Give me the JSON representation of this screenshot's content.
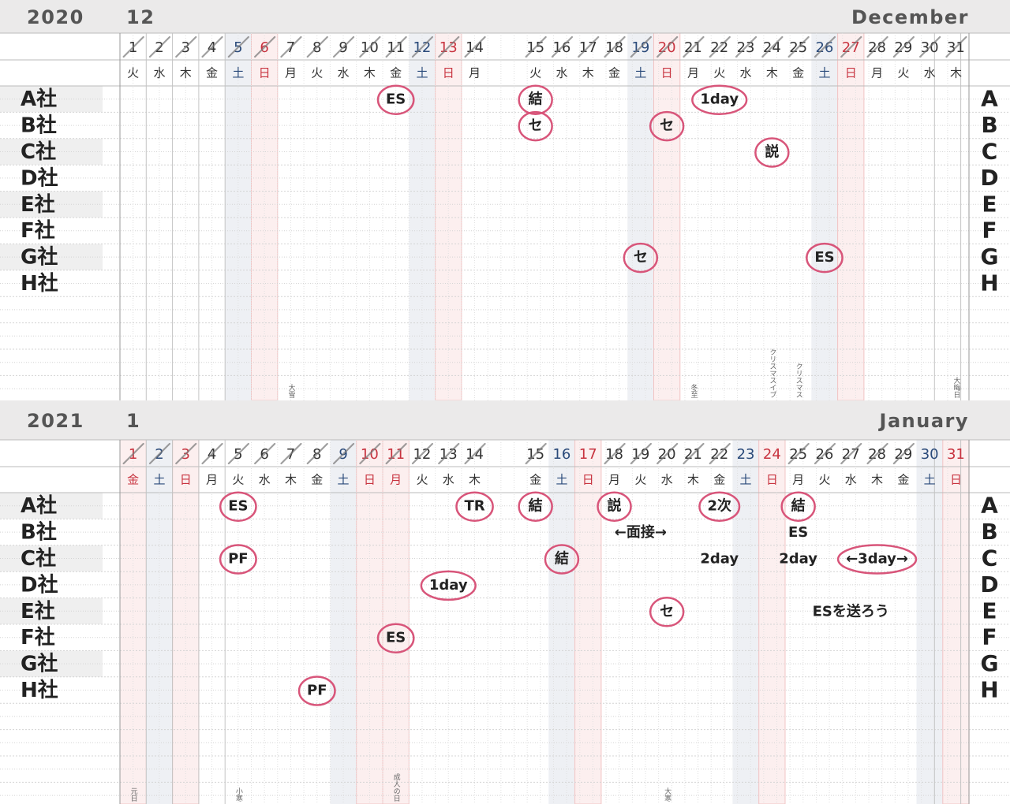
{
  "months": [
    {
      "year": "2020",
      "month": "12",
      "name": "December",
      "days": [
        {
          "d": "1",
          "w": "火"
        },
        {
          "d": "2",
          "w": "水"
        },
        {
          "d": "3",
          "w": "木"
        },
        {
          "d": "4",
          "w": "金"
        },
        {
          "d": "5",
          "w": "土"
        },
        {
          "d": "6",
          "w": "日"
        },
        {
          "d": "7",
          "w": "月",
          "note": "大雪"
        },
        {
          "d": "8",
          "w": "火"
        },
        {
          "d": "9",
          "w": "水"
        },
        {
          "d": "10",
          "w": "木"
        },
        {
          "d": "11",
          "w": "金"
        },
        {
          "d": "12",
          "w": "土"
        },
        {
          "d": "13",
          "w": "日"
        },
        {
          "d": "14",
          "w": "月"
        },
        {
          "d": "15",
          "w": "火"
        },
        {
          "d": "16",
          "w": "水"
        },
        {
          "d": "17",
          "w": "木"
        },
        {
          "d": "18",
          "w": "金"
        },
        {
          "d": "19",
          "w": "土"
        },
        {
          "d": "20",
          "w": "日"
        },
        {
          "d": "21",
          "w": "月",
          "note": "冬至"
        },
        {
          "d": "22",
          "w": "火"
        },
        {
          "d": "23",
          "w": "水"
        },
        {
          "d": "24",
          "w": "木",
          "note": "クリスマスイブ"
        },
        {
          "d": "25",
          "w": "金",
          "note": "クリスマス"
        },
        {
          "d": "26",
          "w": "土"
        },
        {
          "d": "27",
          "w": "日"
        },
        {
          "d": "28",
          "w": "月"
        },
        {
          "d": "29",
          "w": "火"
        },
        {
          "d": "30",
          "w": "水"
        },
        {
          "d": "31",
          "w": "木",
          "note": "大晦日"
        }
      ],
      "rows": [
        {
          "label": "A社",
          "side": "A",
          "marks": [
            {
              "day": "11",
              "text": "ES",
              "circled": true
            },
            {
              "day": "15",
              "text": "結",
              "circled": true
            },
            {
              "day": "22",
              "text": "1day",
              "circled": true
            }
          ]
        },
        {
          "label": "B社",
          "side": "B",
          "marks": [
            {
              "day": "15",
              "text": "セ",
              "circled": true
            },
            {
              "day": "20",
              "text": "セ",
              "circled": true
            }
          ]
        },
        {
          "label": "C社",
          "side": "C",
          "marks": [
            {
              "day": "24",
              "text": "説",
              "circled": true
            }
          ]
        },
        {
          "label": "D社",
          "side": "D",
          "marks": []
        },
        {
          "label": "E社",
          "side": "E",
          "marks": []
        },
        {
          "label": "F社",
          "side": "F",
          "marks": []
        },
        {
          "label": "G社",
          "side": "G",
          "marks": [
            {
              "day": "19",
              "text": "セ",
              "circled": true
            },
            {
              "day": "26",
              "text": "ES",
              "circled": true
            }
          ]
        },
        {
          "label": "H社",
          "side": "H",
          "marks": []
        }
      ]
    },
    {
      "year": "2021",
      "month": "1",
      "name": "January",
      "days": [
        {
          "d": "1",
          "w": "金",
          "note": "元日",
          "holiday": true
        },
        {
          "d": "2",
          "w": "土"
        },
        {
          "d": "3",
          "w": "日"
        },
        {
          "d": "4",
          "w": "月"
        },
        {
          "d": "5",
          "w": "火",
          "note": "小寒"
        },
        {
          "d": "6",
          "w": "水"
        },
        {
          "d": "7",
          "w": "木"
        },
        {
          "d": "8",
          "w": "金"
        },
        {
          "d": "9",
          "w": "土"
        },
        {
          "d": "10",
          "w": "日"
        },
        {
          "d": "11",
          "w": "月",
          "note": "成人の日",
          "holiday": true
        },
        {
          "d": "12",
          "w": "火"
        },
        {
          "d": "13",
          "w": "水"
        },
        {
          "d": "14",
          "w": "木"
        },
        {
          "d": "15",
          "w": "金"
        },
        {
          "d": "16",
          "w": "土",
          "crossed": false
        },
        {
          "d": "17",
          "w": "日",
          "crossed": false
        },
        {
          "d": "18",
          "w": "月"
        },
        {
          "d": "19",
          "w": "火"
        },
        {
          "d": "20",
          "w": "水",
          "note": "大寒"
        },
        {
          "d": "21",
          "w": "木"
        },
        {
          "d": "22",
          "w": "金"
        },
        {
          "d": "23",
          "w": "土",
          "crossed": false
        },
        {
          "d": "24",
          "w": "日",
          "crossed": false
        },
        {
          "d": "25",
          "w": "月"
        },
        {
          "d": "26",
          "w": "火"
        },
        {
          "d": "27",
          "w": "水"
        },
        {
          "d": "28",
          "w": "木"
        },
        {
          "d": "29",
          "w": "金"
        },
        {
          "d": "30",
          "w": "土",
          "crossed": false
        },
        {
          "d": "31",
          "w": "日",
          "crossed": false
        }
      ],
      "rows": [
        {
          "label": "A社",
          "side": "A",
          "marks": [
            {
              "day": "5",
              "text": "ES",
              "circled": true
            },
            {
              "day": "14",
              "text": "TR",
              "circled": true
            },
            {
              "day": "15",
              "text": "結",
              "circled": true
            },
            {
              "day": "18",
              "text": "説",
              "circled": true
            },
            {
              "day": "22",
              "text": "2次",
              "circled": true
            },
            {
              "day": "25",
              "text": "結",
              "circled": true
            }
          ]
        },
        {
          "label": "B社",
          "side": "B",
          "marks": [
            {
              "day": "19",
              "text": "←面接→",
              "circled": false
            },
            {
              "day": "25",
              "text": "ES",
              "circled": false
            }
          ]
        },
        {
          "label": "C社",
          "side": "C",
          "marks": [
            {
              "day": "5",
              "text": "PF",
              "circled": true
            },
            {
              "day": "16",
              "text": "結",
              "circled": true
            },
            {
              "day": "22",
              "text": "2day",
              "circled": false
            },
            {
              "day": "25",
              "text": "2day",
              "circled": false
            },
            {
              "day": "28",
              "text": "←3day→",
              "circled": true
            }
          ]
        },
        {
          "label": "D社",
          "side": "D",
          "marks": [
            {
              "day": "13",
              "text": "1day",
              "circled": true
            }
          ]
        },
        {
          "label": "E社",
          "side": "E",
          "marks": [
            {
              "day": "20",
              "text": "セ",
              "circled": true
            },
            {
              "day": "27",
              "text": "ESを送ろう",
              "circled": false
            }
          ]
        },
        {
          "label": "F社",
          "side": "F",
          "marks": [
            {
              "day": "11",
              "text": "ES",
              "circled": true
            }
          ]
        },
        {
          "label": "G社",
          "side": "G",
          "marks": []
        },
        {
          "label": "H社",
          "side": "H",
          "marks": [
            {
              "day": "8",
              "text": "PF",
              "circled": true
            }
          ]
        }
      ]
    }
  ]
}
